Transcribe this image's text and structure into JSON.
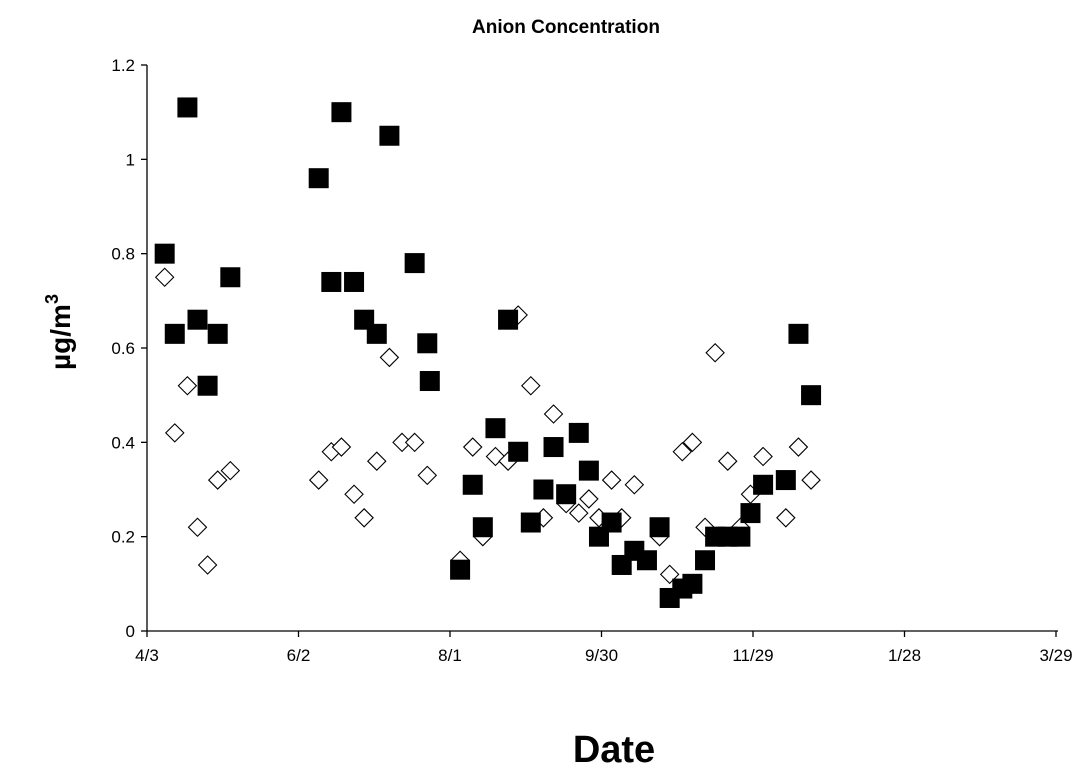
{
  "chart_data": {
    "type": "scatter",
    "title": "Anion Concentration",
    "xlabel": "Date",
    "ylabel": "µg/m",
    "ylabel_superscript": "3",
    "x_ticks": [
      "4/3",
      "6/2",
      "8/1",
      "9/30",
      "11/29",
      "1/28",
      "3/29"
    ],
    "xlim": [
      "4/3",
      "4/1 (next year)"
    ],
    "ylim": [
      0,
      1.2
    ],
    "y_ticks": [
      "0",
      "0.2",
      "0.4",
      "0.6",
      "0.8",
      "1",
      "1.2"
    ],
    "grid": false,
    "legend": "none",
    "series": [
      {
        "marker": "filled-square",
        "color": "#000000",
        "points": [
          [
            "4/10",
            0.8
          ],
          [
            "4/14",
            0.63
          ],
          [
            "4/19",
            1.11
          ],
          [
            "4/23",
            0.66
          ],
          [
            "4/27",
            0.52
          ],
          [
            "5/1",
            0.63
          ],
          [
            "5/6",
            0.75
          ],
          [
            "6/10",
            0.96
          ],
          [
            "6/15",
            0.74
          ],
          [
            "6/19",
            1.1
          ],
          [
            "6/24",
            0.74
          ],
          [
            "6/28",
            0.66
          ],
          [
            "7/3",
            0.63
          ],
          [
            "7/8",
            1.05
          ],
          [
            "7/24",
            0.53
          ],
          [
            "7/18",
            0.78
          ],
          [
            "7/23",
            0.61
          ],
          [
            "8/5",
            0.13
          ],
          [
            "8/10",
            0.31
          ],
          [
            "8/14",
            0.22
          ],
          [
            "8/19",
            0.43
          ],
          [
            "8/24",
            0.66
          ],
          [
            "8/28",
            0.38
          ],
          [
            "9/2",
            0.23
          ],
          [
            "9/7",
            0.3
          ],
          [
            "9/11",
            0.39
          ],
          [
            "9/16",
            0.29
          ],
          [
            "9/21",
            0.42
          ],
          [
            "9/25",
            0.34
          ],
          [
            "9/29",
            0.2
          ],
          [
            "10/4",
            0.23
          ],
          [
            "10/8",
            0.14
          ],
          [
            "10/13",
            0.17
          ],
          [
            "10/18",
            0.15
          ],
          [
            "10/23",
            0.22
          ],
          [
            "10/27",
            0.07
          ],
          [
            "11/1",
            0.09
          ],
          [
            "11/5",
            0.1
          ],
          [
            "11/10",
            0.15
          ],
          [
            "11/14",
            0.2
          ],
          [
            "11/19",
            0.2
          ],
          [
            "11/24",
            0.2
          ],
          [
            "11/28",
            0.25
          ],
          [
            "12/3",
            0.31
          ],
          [
            "12/12",
            0.32
          ],
          [
            "12/17",
            0.63
          ],
          [
            "12/22",
            0.5
          ]
        ]
      },
      {
        "marker": "open-diamond",
        "color": "#000000",
        "points": [
          [
            "4/10",
            0.75
          ],
          [
            "4/14",
            0.42
          ],
          [
            "4/19",
            0.52
          ],
          [
            "4/23",
            0.22
          ],
          [
            "4/27",
            0.14
          ],
          [
            "5/1",
            0.32
          ],
          [
            "5/6",
            0.34
          ],
          [
            "6/10",
            0.32
          ],
          [
            "6/15",
            0.38
          ],
          [
            "6/19",
            0.39
          ],
          [
            "6/24",
            0.29
          ],
          [
            "6/28",
            0.24
          ],
          [
            "7/3",
            0.36
          ],
          [
            "7/8",
            0.58
          ],
          [
            "7/13",
            0.4
          ],
          [
            "7/18",
            0.4
          ],
          [
            "7/23",
            0.33
          ],
          [
            "8/5",
            0.15
          ],
          [
            "8/10",
            0.39
          ],
          [
            "8/14",
            0.2
          ],
          [
            "8/19",
            0.37
          ],
          [
            "8/24",
            0.36
          ],
          [
            "8/28",
            0.67
          ],
          [
            "9/2",
            0.52
          ],
          [
            "9/7",
            0.24
          ],
          [
            "9/11",
            0.46
          ],
          [
            "9/16",
            0.27
          ],
          [
            "9/21",
            0.25
          ],
          [
            "9/25",
            0.28
          ],
          [
            "9/29",
            0.24
          ],
          [
            "10/4",
            0.32
          ],
          [
            "10/8",
            0.24
          ],
          [
            "10/13",
            0.31
          ],
          [
            "10/18",
            0.15
          ],
          [
            "10/23",
            0.2
          ],
          [
            "10/27",
            0.12
          ],
          [
            "11/1",
            0.38
          ],
          [
            "11/5",
            0.4
          ],
          [
            "11/10",
            0.22
          ],
          [
            "11/14",
            0.59
          ],
          [
            "11/19",
            0.36
          ],
          [
            "11/24",
            0.22
          ],
          [
            "11/28",
            0.29
          ],
          [
            "12/3",
            0.37
          ],
          [
            "12/12",
            0.24
          ],
          [
            "12/17",
            0.39
          ],
          [
            "12/22",
            0.32
          ]
        ]
      }
    ]
  }
}
